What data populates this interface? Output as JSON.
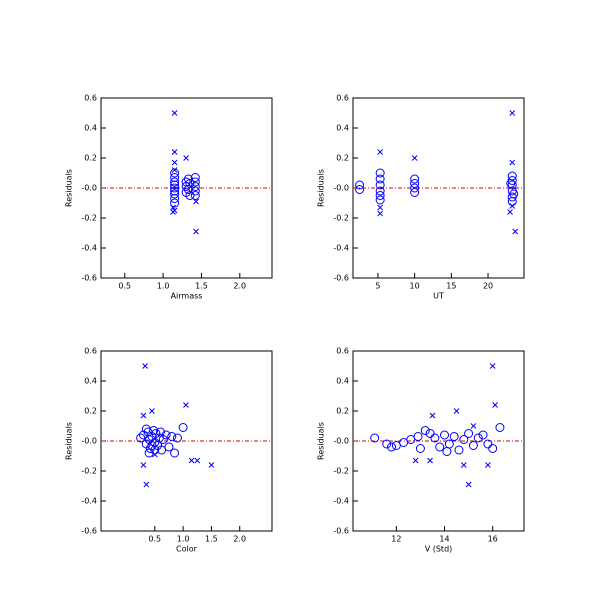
{
  "chart_data": [
    {
      "type": "scatter",
      "xlabel": "Airmass",
      "ylabel": "Residuals",
      "xlim": [
        0.19,
        2.42
      ],
      "ylim": [
        -0.6,
        0.6
      ],
      "xticks": [
        0.5,
        {
          "value": 1,
          "label": "1.0"
        },
        1.5,
        {
          "value": 2,
          "label": "2.0"
        }
      ],
      "yticks": [
        0.6,
        0.4,
        0.2,
        {
          "value": 0,
          "label": "-0.0"
        },
        -0.2,
        -0.4,
        -0.6
      ],
      "hline": 0,
      "hline_color": "#dd0000",
      "series": [
        {
          "color": "#0000ff",
          "marker": "o",
          "x": [
            1.15,
            1.15,
            1.15,
            1.15,
            1.15,
            1.15,
            1.15,
            1.15,
            1.15,
            1.3,
            1.3,
            1.3,
            1.33,
            1.33,
            1.35,
            1.35,
            1.42,
            1.42,
            1.42,
            1.42,
            1.42
          ],
          "values": [
            0.1,
            0.07,
            0.04,
            0.02,
            0,
            -0.02,
            -0.04,
            -0.07,
            -0.1,
            0.04,
            0.01,
            -0.03,
            0.06,
            -0.01,
            0.03,
            -0.05,
            0.07,
            0.04,
            0.01,
            -0.02,
            -0.05
          ]
        },
        {
          "color": "#0000ff",
          "marker": "x",
          "x": [
            1.15,
            1.15,
            1.15,
            1.15,
            1.13,
            1.13,
            1.15,
            1.3,
            1.43,
            1.43
          ],
          "values": [
            0.5,
            0.24,
            0.17,
            0.12,
            -0.13,
            -0.16,
            -0.15,
            0.2,
            -0.29,
            -0.09
          ]
        }
      ]
    },
    {
      "type": "scatter",
      "xlabel": "UT",
      "ylabel": "Residuals",
      "xlim": [
        1.6,
        24.9
      ],
      "ylim": [
        -0.6,
        0.6
      ],
      "xticks": [
        5,
        10,
        15,
        20
      ],
      "yticks": [
        0.6,
        0.4,
        0.2,
        {
          "value": 0,
          "label": "-0.0"
        },
        -0.2,
        -0.4,
        -0.6
      ],
      "hline": 0,
      "hline_color": "#dd0000",
      "series": [
        {
          "color": "#0000ff",
          "marker": "o",
          "x": [
            2.5,
            2.5,
            5.3,
            5.3,
            5.3,
            5.3,
            5.3,
            5.3,
            10,
            10,
            10,
            10,
            23.3,
            23.3,
            23.3,
            23.3,
            23.3,
            23.3,
            23.1,
            23.5
          ],
          "values": [
            0.02,
            -0.01,
            0.1,
            0.06,
            0.02,
            -0.02,
            -0.05,
            -0.08,
            0.06,
            0.03,
            0,
            -0.03,
            0.08,
            0.05,
            0.02,
            -0.02,
            -0.06,
            -0.09,
            0.03,
            -0.04
          ]
        },
        {
          "color": "#0000ff",
          "marker": "x",
          "x": [
            23.3,
            23.3,
            23.7,
            5.3,
            5.3,
            5.3,
            10,
            23,
            23.3
          ],
          "values": [
            0.5,
            0.17,
            -0.29,
            0.24,
            -0.13,
            -0.17,
            0.2,
            -0.16,
            -0.12
          ]
        }
      ]
    },
    {
      "type": "scatter",
      "xlabel": "Color",
      "ylabel": "Residuals",
      "xlim": [
        -0.45,
        2.57
      ],
      "ylim": [
        -0.6,
        0.6
      ],
      "xticks": [
        0.5,
        {
          "value": 1,
          "label": "1.0"
        },
        1.5,
        {
          "value": 2,
          "label": "2.0"
        }
      ],
      "yticks": [
        0.6,
        0.4,
        0.2,
        {
          "value": 0,
          "label": "-0.0"
        },
        -0.2,
        -0.4,
        -0.6
      ],
      "hline": 0,
      "hline_color": "#dd0000",
      "series": [
        {
          "color": "#0000ff",
          "marker": "o",
          "x": [
            0.25,
            0.3,
            0.35,
            0.38,
            0.4,
            0.42,
            0.45,
            0.48,
            0.5,
            0.52,
            0.55,
            0.58,
            0.6,
            0.62,
            0.65,
            0.7,
            0.75,
            0.8,
            0.85,
            0.9,
            1.0,
            0.4,
            0.5,
            0.35,
            0.45
          ],
          "values": [
            0.02,
            0.04,
            -0.02,
            0.06,
            0.01,
            -0.05,
            0.03,
            0.07,
            -0.01,
            0.05,
            -0.03,
            0.02,
            0.06,
            -0.06,
            0.01,
            0.04,
            -0.04,
            0.03,
            -0.08,
            0.02,
            0.09,
            -0.08,
            -0.06,
            0.08,
            -0.03
          ]
        },
        {
          "color": "#0000ff",
          "marker": "x",
          "x": [
            0.33,
            1.05,
            0.45,
            0.3,
            0.3,
            0.35,
            1.15,
            1.25,
            1.5,
            0.5
          ],
          "values": [
            0.5,
            0.24,
            0.2,
            0.17,
            -0.16,
            -0.29,
            -0.13,
            -0.13,
            -0.16,
            -0.09
          ]
        }
      ]
    },
    {
      "type": "scatter",
      "xlabel": "V (Std)",
      "ylabel": "Residuals",
      "xlim": [
        10.2,
        17.3
      ],
      "ylim": [
        -0.6,
        0.6
      ],
      "xticks": [
        12,
        14,
        16
      ],
      "yticks": [
        0.6,
        0.4,
        0.2,
        {
          "value": 0,
          "label": "-0.0"
        },
        -0.2,
        -0.4,
        -0.6
      ],
      "hline": 0,
      "hline_color": "#dd0000",
      "series": [
        {
          "color": "#0000ff",
          "marker": "o",
          "x": [
            11.1,
            11.6,
            11.8,
            12.0,
            12.3,
            12.6,
            12.9,
            13.2,
            13.4,
            13.6,
            13.8,
            14.0,
            14.2,
            14.4,
            14.6,
            14.8,
            15.0,
            15.2,
            15.4,
            15.6,
            15.8,
            16.0,
            16.3,
            13.0,
            14.1
          ],
          "values": [
            0.02,
            -0.02,
            -0.04,
            -0.03,
            -0.01,
            0.01,
            0.03,
            0.07,
            0.05,
            0.02,
            -0.04,
            0.04,
            -0.02,
            0.03,
            -0.06,
            0.01,
            0.05,
            -0.03,
            0.02,
            0.04,
            -0.02,
            -0.05,
            0.09,
            -0.05,
            -0.07
          ]
        },
        {
          "color": "#0000ff",
          "marker": "x",
          "x": [
            16.0,
            16.1,
            14.5,
            13.5,
            15.2,
            14.8,
            15.0,
            13.4,
            12.8,
            15.8
          ],
          "values": [
            0.5,
            0.24,
            0.2,
            0.17,
            0.1,
            -0.16,
            -0.29,
            -0.13,
            -0.13,
            -0.16
          ]
        }
      ]
    }
  ]
}
